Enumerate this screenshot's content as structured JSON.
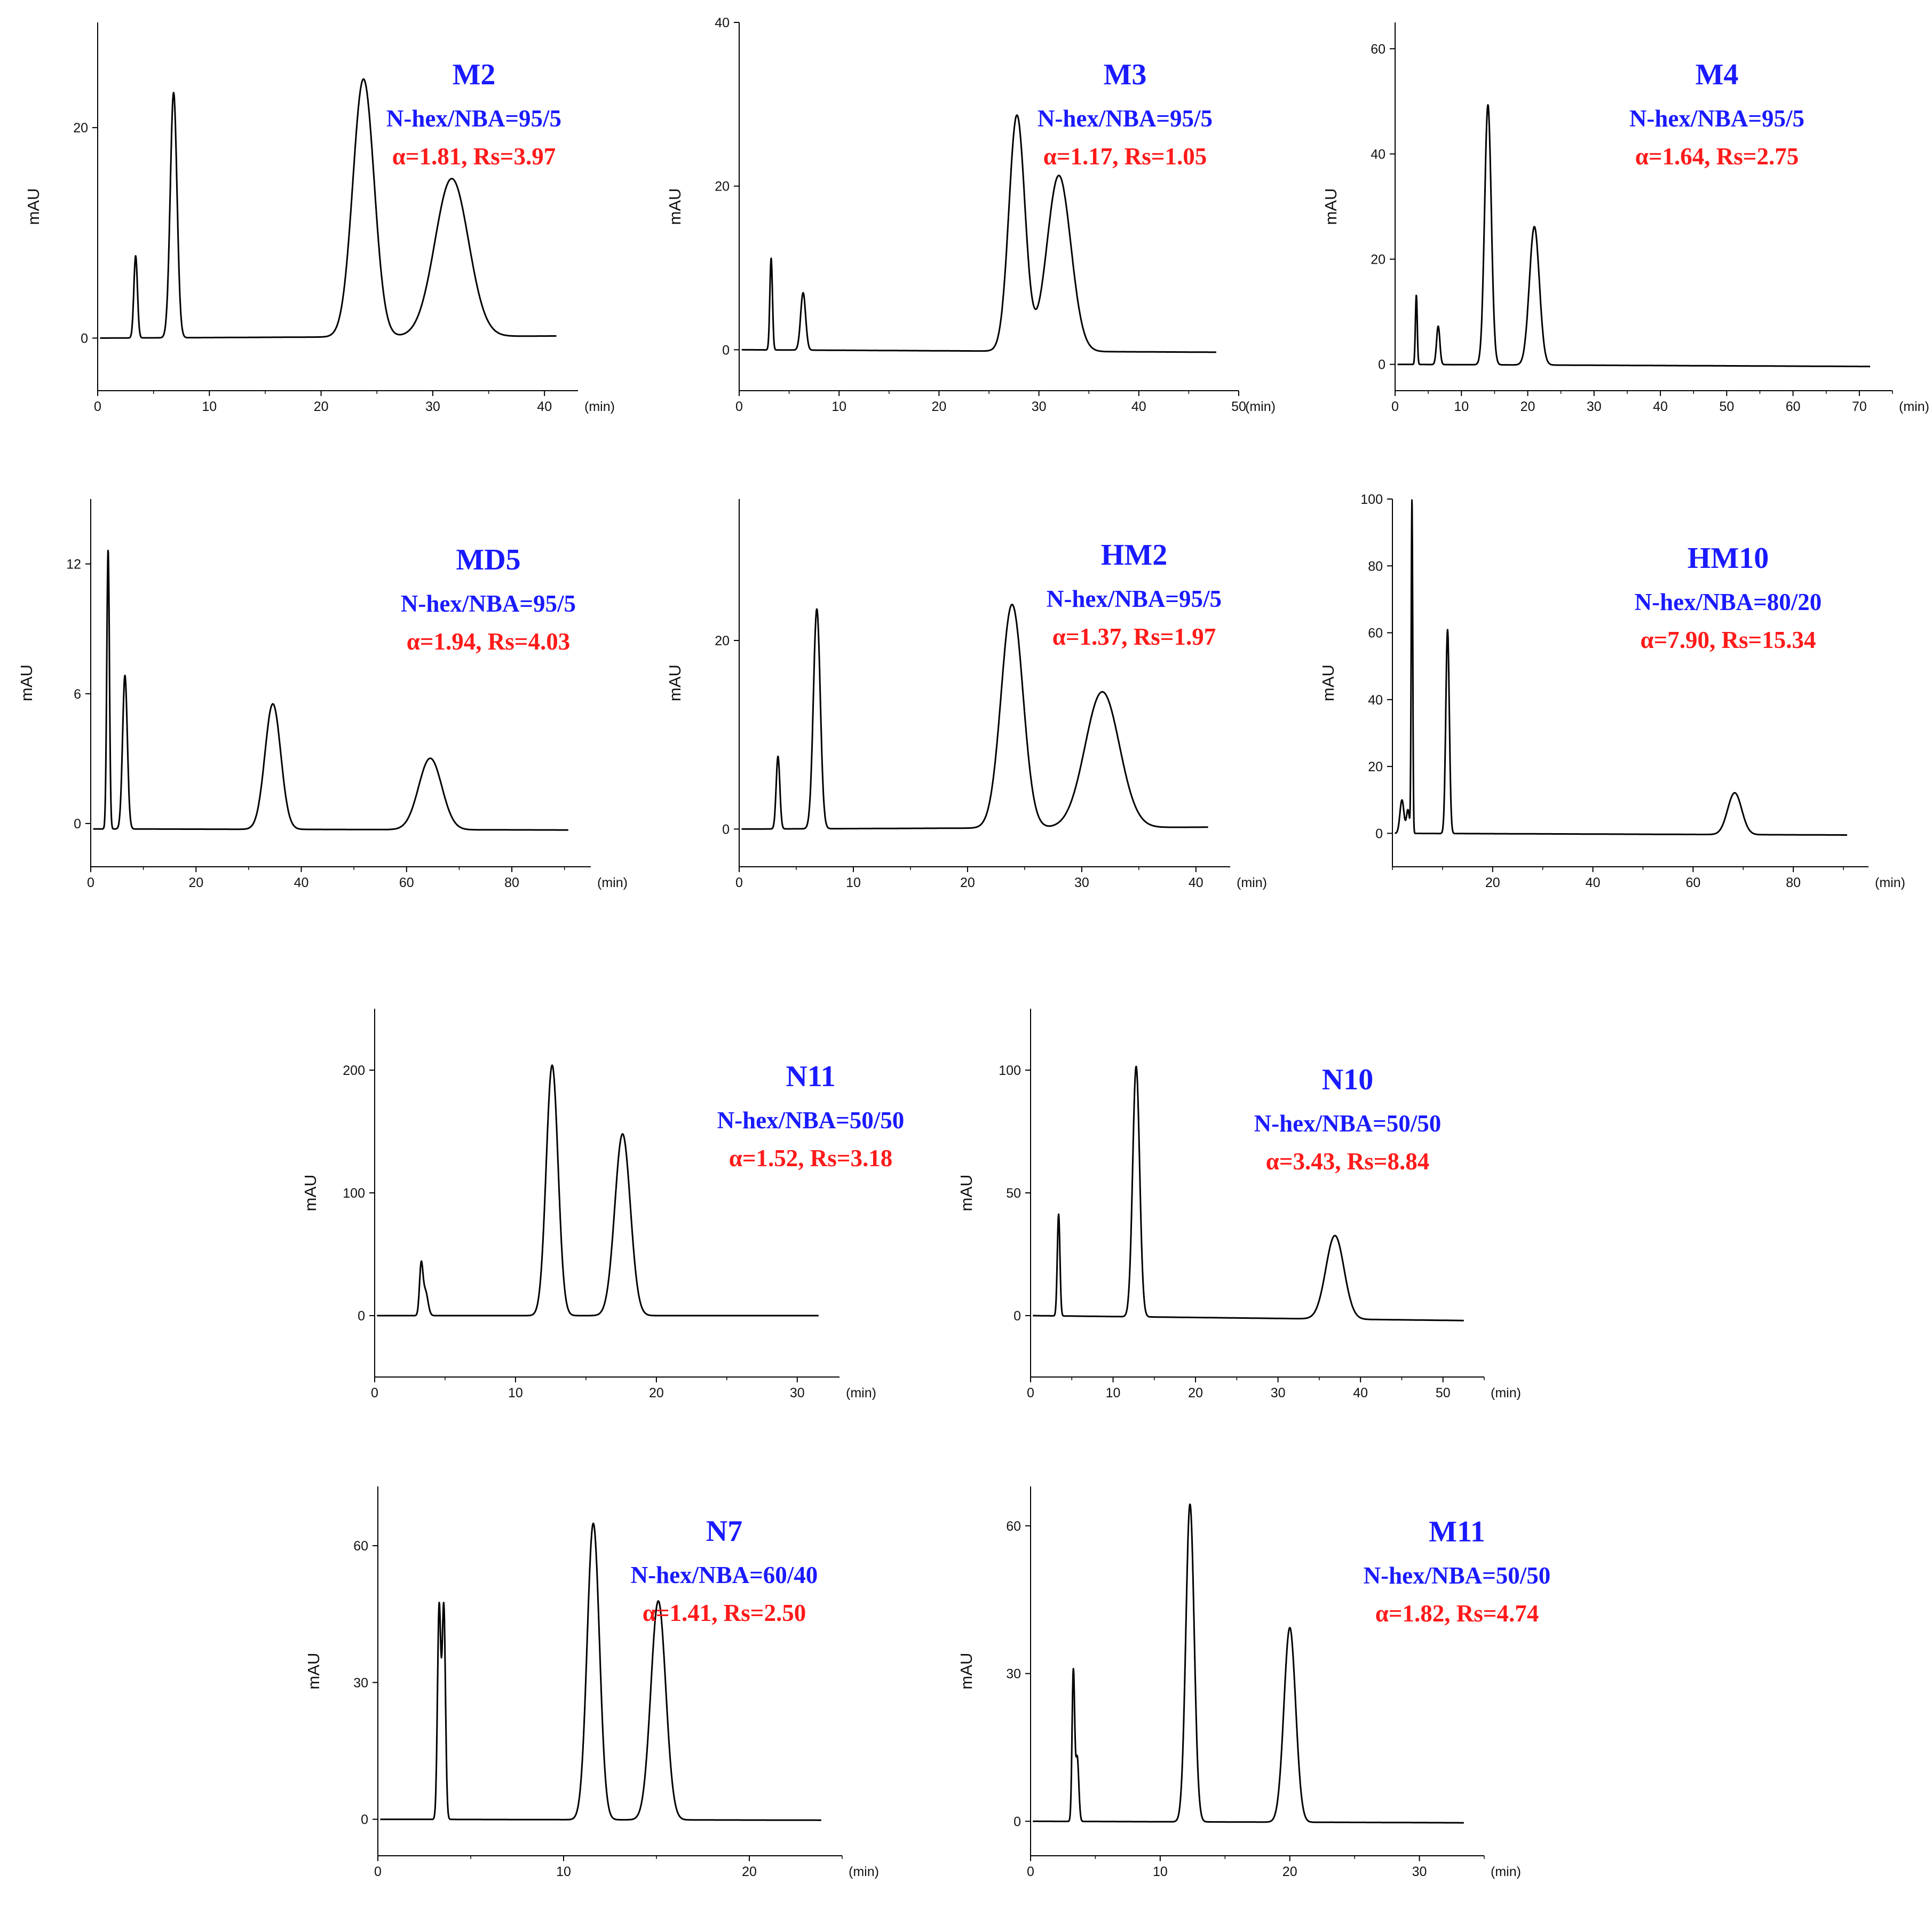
{
  "figure": {
    "colors": {
      "title": "#1a1aff",
      "mobile_phase": "#1a1aff",
      "stats": "#ff1a1a",
      "line": "#000000"
    }
  },
  "chart_data": [
    {
      "id": "M2",
      "type": "line",
      "title": "M2",
      "mobile_phase": "N-hex/NBA=95/5",
      "stats": "α=1.81, Rs=3.97",
      "xlabel": "(min)",
      "ylabel": "mAU",
      "xlim": [
        0,
        43
      ],
      "ylim": [
        -5,
        30
      ],
      "xticks": [
        0,
        10,
        20,
        30,
        40
      ],
      "yticks": [
        0,
        20
      ],
      "baseline": 0,
      "drift": 0.2,
      "peaks": [
        {
          "t": 3.4,
          "h": 7.8,
          "w": 0.16
        },
        {
          "t": 6.8,
          "h": 23.3,
          "w": 0.3
        },
        {
          "t": 23.8,
          "h": 24.5,
          "w": 0.95
        },
        {
          "t": 31.7,
          "h": 15.0,
          "w": 1.5
        }
      ]
    },
    {
      "id": "M3",
      "type": "line",
      "title": "M3",
      "mobile_phase": "N-hex/NBA=95/5",
      "stats": "α=1.17, Rs=1.05",
      "xlabel": "(min)",
      "ylabel": "mAU",
      "xlim": [
        0,
        50
      ],
      "ylim": [
        -5,
        40
      ],
      "xticks": [
        0,
        10,
        20,
        30,
        40,
        50
      ],
      "yticks": [
        0,
        20,
        40
      ],
      "baseline": 0,
      "drift": -0.3,
      "peaks": [
        {
          "t": 3.2,
          "h": 11.2,
          "w": 0.13
        },
        {
          "t": 6.4,
          "h": 7.0,
          "w": 0.25
        },
        {
          "t": 27.8,
          "h": 28.8,
          "w": 0.8
        },
        {
          "t": 32.0,
          "h": 21.5,
          "w": 1.2
        }
      ]
    },
    {
      "id": "M4",
      "type": "line",
      "title": "M4",
      "mobile_phase": "N-hex/NBA=95/5",
      "stats": "α=1.64, Rs=2.75",
      "xlabel": "(min)",
      "ylabel": "mAU",
      "xlim": [
        0,
        75
      ],
      "ylim": [
        -5,
        65
      ],
      "xticks": [
        0,
        10,
        20,
        30,
        40,
        50,
        60,
        70
      ],
      "yticks": [
        0,
        20,
        40,
        60
      ],
      "baseline": 0,
      "drift": -0.4,
      "peaks": [
        {
          "t": 3.2,
          "h": 13.2,
          "w": 0.14
        },
        {
          "t": 6.5,
          "h": 7.3,
          "w": 0.25
        },
        {
          "t": 14.0,
          "h": 49.4,
          "w": 0.5
        },
        {
          "t": 21.0,
          "h": 26.3,
          "w": 0.75
        }
      ]
    },
    {
      "id": "MD5",
      "type": "line",
      "title": "MD5",
      "mobile_phase": "N-hex/NBA=95/5",
      "stats": "α=1.94, Rs=4.03",
      "xlabel": "(min)",
      "ylabel": "mAU",
      "xlim": [
        0,
        95
      ],
      "ylim": [
        -2,
        15
      ],
      "xticks": [
        0,
        20,
        40,
        60,
        80
      ],
      "yticks": [
        0,
        6,
        12
      ],
      "baseline": -0.25,
      "drift": -0.05,
      "peaks": [
        {
          "t": 3.3,
          "h": 12.9,
          "w": 0.25
        },
        {
          "t": 6.5,
          "h": 7.1,
          "w": 0.45
        },
        {
          "t": 34.6,
          "h": 5.8,
          "w": 1.5
        },
        {
          "t": 64.5,
          "h": 3.3,
          "w": 2.2
        }
      ]
    },
    {
      "id": "HM2",
      "type": "line",
      "title": "HM2",
      "mobile_phase": "N-hex/NBA=95/5",
      "stats": "α=1.37, Rs=1.97",
      "xlabel": "(min)",
      "ylabel": "mAU",
      "xlim": [
        0,
        43
      ],
      "ylim": [
        -4,
        35
      ],
      "xticks": [
        0,
        10,
        20,
        30,
        40
      ],
      "yticks": [
        0,
        20
      ],
      "baseline": 0,
      "drift": 0.2,
      "peaks": [
        {
          "t": 3.4,
          "h": 7.7,
          "w": 0.16
        },
        {
          "t": 6.8,
          "h": 23.3,
          "w": 0.3
        },
        {
          "t": 23.9,
          "h": 23.7,
          "w": 0.95
        },
        {
          "t": 31.8,
          "h": 14.4,
          "w": 1.5
        }
      ]
    },
    {
      "id": "HM10",
      "type": "line",
      "title": "HM10",
      "mobile_phase": "N-hex/NBA=80/20",
      "stats": "α=7.90, Rs=15.34",
      "xlabel": "(min)",
      "ylabel": "mAU",
      "xlim": [
        0,
        95
      ],
      "ylim": [
        -10,
        100
      ],
      "xticks": [
        20,
        40,
        60,
        80
      ],
      "yticks": [
        0,
        20,
        40,
        60,
        80,
        100
      ],
      "baseline": 0,
      "drift": -0.5,
      "peaks": [
        {
          "t": 1.9,
          "h": 10.0,
          "w": 0.4
        },
        {
          "t": 3.1,
          "h": 7.0,
          "w": 0.3
        },
        {
          "t": 3.9,
          "h": 100.0,
          "w": 0.15
        },
        {
          "t": 11.0,
          "h": 61.0,
          "w": 0.35
        },
        {
          "t": 68.3,
          "h": 12.5,
          "w": 1.4
        }
      ]
    },
    {
      "id": "N11",
      "type": "line",
      "title": "N11",
      "mobile_phase": "N-hex/NBA=50/50",
      "stats": "α=1.52, Rs=3.18",
      "xlabel": "(min)",
      "ylabel": "mAU",
      "xlim": [
        0,
        33
      ],
      "ylim": [
        -50,
        250
      ],
      "xticks": [
        0,
        10,
        20,
        30
      ],
      "yticks": [
        0,
        100,
        200
      ],
      "baseline": 0,
      "drift": 0,
      "peaks": [
        {
          "t": 3.3,
          "h": 39.0,
          "w": 0.12
        },
        {
          "t": 3.6,
          "h": 20.0,
          "w": 0.18
        },
        {
          "t": 12.6,
          "h": 204.0,
          "w": 0.42
        },
        {
          "t": 17.6,
          "h": 148.0,
          "w": 0.55
        }
      ]
    },
    {
      "id": "N10",
      "type": "line",
      "title": "N10",
      "mobile_phase": "N-hex/NBA=50/50",
      "stats": "α=3.43, Rs=8.84",
      "xlabel": "(min)",
      "ylabel": "mAU",
      "xlim": [
        0,
        55
      ],
      "ylim": [
        -25,
        125
      ],
      "xticks": [
        0,
        10,
        20,
        30,
        40,
        50
      ],
      "yticks": [
        0,
        50,
        100
      ],
      "baseline": 0,
      "drift": -2.0,
      "peaks": [
        {
          "t": 3.4,
          "h": 41.5,
          "w": 0.16
        },
        {
          "t": 12.8,
          "h": 102.0,
          "w": 0.42
        },
        {
          "t": 36.9,
          "h": 34.0,
          "w": 1.1
        }
      ]
    },
    {
      "id": "N7",
      "type": "line",
      "title": "N7",
      "mobile_phase": "N-hex/NBA=60/40",
      "stats": "α=1.41, Rs=2.50",
      "xlabel": "(min)",
      "ylabel": "mAU",
      "xlim": [
        0,
        25
      ],
      "ylim": [
        -8,
        73
      ],
      "xticks": [
        0,
        10,
        20
      ],
      "yticks": [
        0,
        30,
        60
      ],
      "baseline": 0,
      "drift": -0.2,
      "peaks": [
        {
          "t": 3.3,
          "h": 46.5,
          "w": 0.09
        },
        {
          "t": 3.55,
          "h": 46.5,
          "w": 0.09
        },
        {
          "t": 11.6,
          "h": 65.0,
          "w": 0.33
        },
        {
          "t": 15.1,
          "h": 48.0,
          "w": 0.4
        }
      ]
    },
    {
      "id": "M11",
      "type": "line",
      "title": "M11",
      "mobile_phase": "N-hex/NBA=50/50",
      "stats": "α=1.82, Rs=4.74",
      "xlabel": "(min)",
      "ylabel": "mAU",
      "xlim": [
        0,
        35
      ],
      "ylim": [
        -7,
        68
      ],
      "xticks": [
        0,
        10,
        20,
        30
      ],
      "yticks": [
        0,
        30,
        60
      ],
      "baseline": 0,
      "drift": -0.3,
      "peaks": [
        {
          "t": 3.3,
          "h": 30.5,
          "w": 0.1
        },
        {
          "t": 3.6,
          "h": 13.0,
          "w": 0.12
        },
        {
          "t": 12.3,
          "h": 64.5,
          "w": 0.32
        },
        {
          "t": 20.0,
          "h": 39.5,
          "w": 0.45
        }
      ]
    }
  ]
}
